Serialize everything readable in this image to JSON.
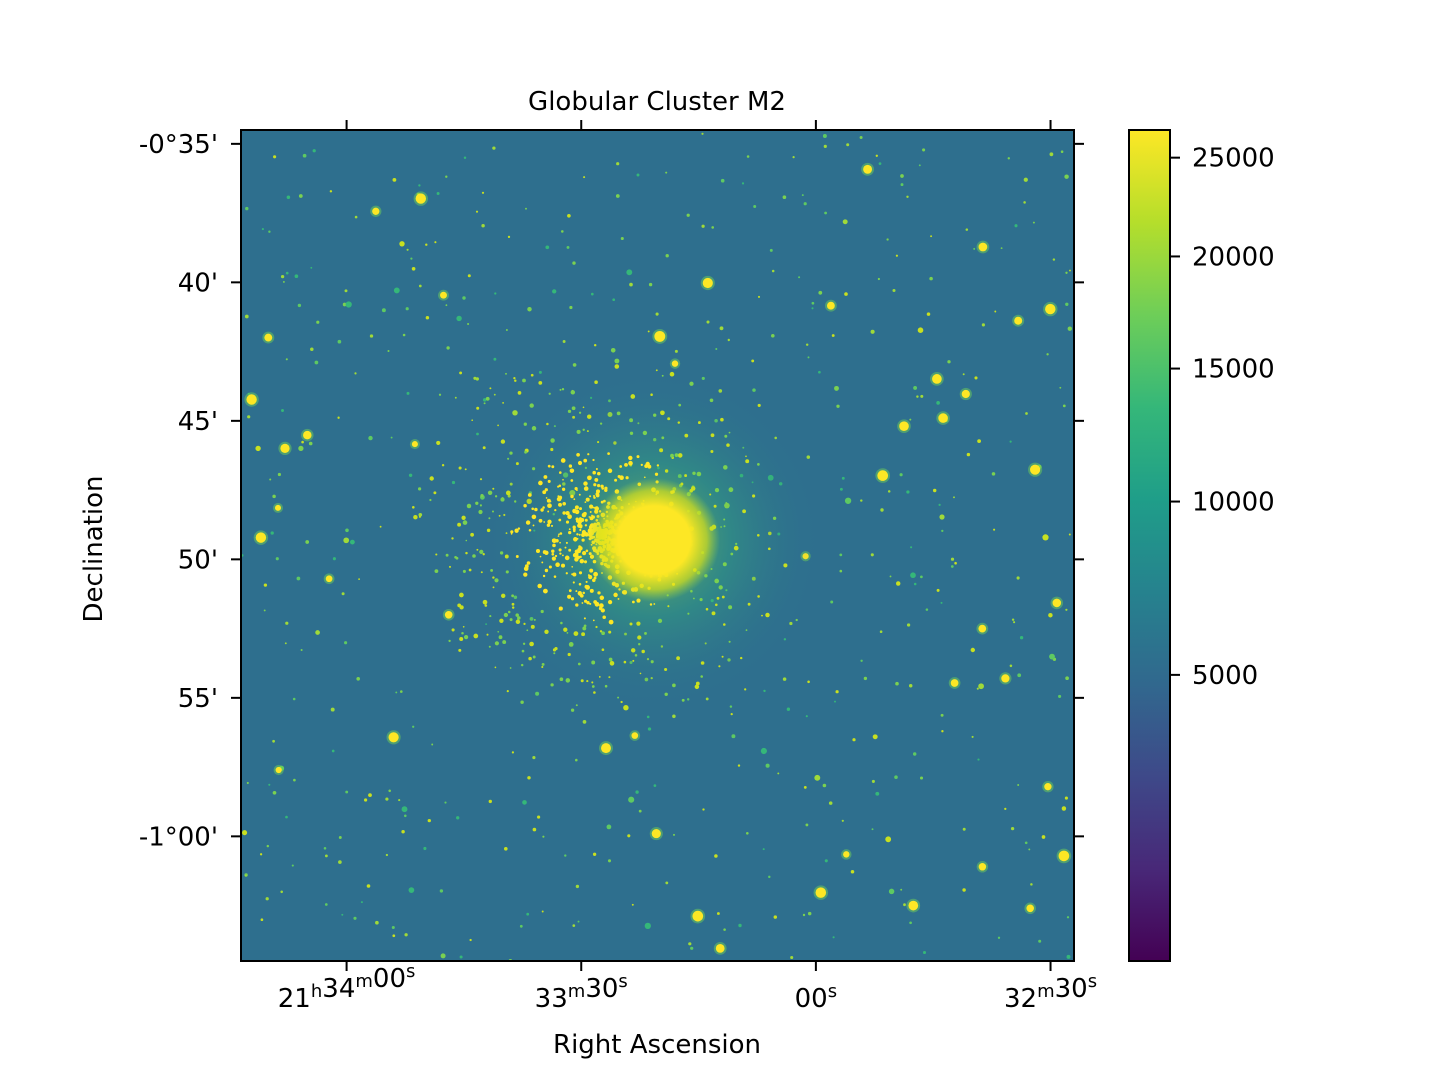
{
  "chart_data": {
    "type": "heatmap",
    "title": "Globular Cluster M2",
    "xlabel": "Right Ascension",
    "ylabel": "Declination",
    "x_ticks": [
      {
        "h": "21",
        "m": "34",
        "s": "00",
        "label": "21h34m00s"
      },
      {
        "h": "",
        "m": "33",
        "s": "30",
        "label": "33m30s"
      },
      {
        "h": "",
        "m": "",
        "s": "00",
        "label": "00s"
      },
      {
        "h": "",
        "m": "32",
        "s": "30",
        "label": "32m30s"
      }
    ],
    "x_tick_values_sec": [
      77640,
      77610,
      77580,
      77550
    ],
    "xlim_sec": [
      77653.5,
      77547
    ],
    "y_ticks": [
      "-0°35'",
      "40'",
      "45'",
      "50'",
      "55'",
      "-1°00'"
    ],
    "y_tick_values_arcmin": [
      -35,
      -40,
      -45,
      -50,
      -55,
      -60
    ],
    "ylim_arcmin": [
      -64.5,
      -34.5
    ],
    "colorbar": {
      "colormap": "viridis",
      "scale": "sqrt",
      "vmin": 500,
      "vmax": 26500,
      "ticks": [
        5000,
        10000,
        15000,
        20000,
        25000
      ],
      "tick_labels": [
        "5000",
        "10000",
        "15000",
        "20000",
        "25000"
      ]
    },
    "background_color": "#2e6f8e",
    "cluster_core_color": "#fde725",
    "cluster_center": {
      "ra_sec": 77607.5,
      "dec_arcmin": -49.1
    },
    "axes_color": "#000000"
  }
}
